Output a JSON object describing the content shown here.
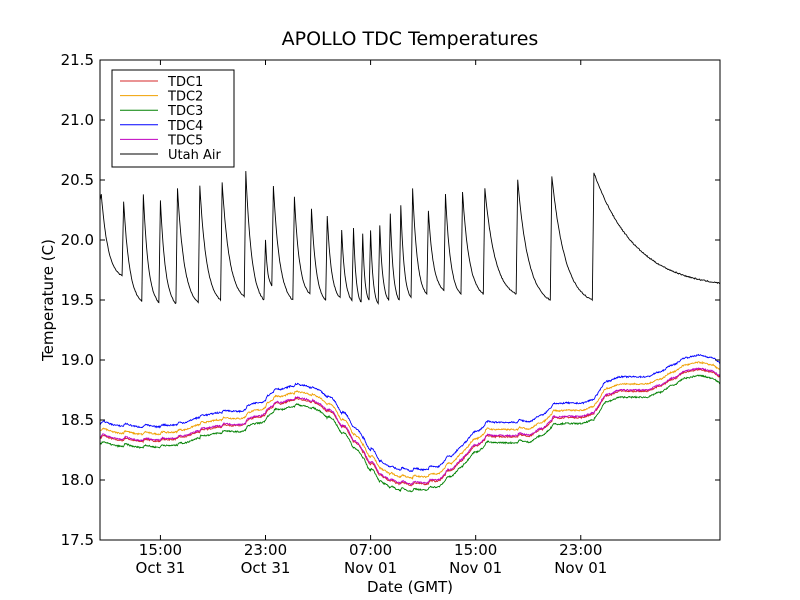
{
  "chart_data": {
    "type": "line",
    "title": "APOLLO TDC Temperatures",
    "xlabel": "Date (GMT)",
    "ylabel": "Temperature (C)",
    "xlim_hours": [
      -4.6,
      42.6
    ],
    "ylim": [
      17.5,
      21.5
    ],
    "y_ticks": [
      "17.5",
      "18.0",
      "18.5",
      "19.0",
      "19.5",
      "20.0",
      "20.5",
      "21.0",
      "21.5"
    ],
    "x_ticks": [
      {
        "hour": 0,
        "time": "15:00",
        "date": "Oct 31"
      },
      {
        "hour": 8,
        "time": "23:00",
        "date": "Oct 31"
      },
      {
        "hour": 16,
        "time": "07:00",
        "date": "Nov 01"
      },
      {
        "hour": 24,
        "time": "15:00",
        "date": "Nov 01"
      },
      {
        "hour": 32,
        "time": "23:00",
        "date": "Nov 01"
      }
    ],
    "legend_position": "upper-left",
    "series": [
      {
        "name": "TDC1",
        "color": "#d62728",
        "offset": 0.0
      },
      {
        "name": "TDC2",
        "color": "#f0a000",
        "offset": 0.06
      },
      {
        "name": "TDC3",
        "color": "#008000",
        "offset": -0.05
      },
      {
        "name": "TDC4",
        "color": "#0000ff",
        "offset": 0.12
      },
      {
        "name": "TDC5",
        "color": "#bf00bf",
        "offset": 0.01
      },
      {
        "name": "Utah Air",
        "color": "#000000",
        "offset": 0
      }
    ],
    "tdc_baseline": {
      "hours": [
        -4.6,
        -3,
        -1.5,
        0,
        1.5,
        3,
        4.5,
        6,
        7.5,
        9,
        10,
        11,
        12,
        13,
        14,
        15,
        16,
        17,
        18,
        19,
        20,
        21,
        22,
        23,
        24,
        25,
        26,
        27,
        28,
        29,
        30,
        31,
        32,
        33,
        34,
        35,
        36,
        37,
        38,
        39,
        40,
        41,
        42,
        42.6
      ],
      "values": [
        18.35,
        18.33,
        18.32,
        18.32,
        18.34,
        18.4,
        18.44,
        18.45,
        18.52,
        18.62,
        18.66,
        18.66,
        18.62,
        18.55,
        18.42,
        18.28,
        18.12,
        18.0,
        17.96,
        17.95,
        17.96,
        17.98,
        18.06,
        18.16,
        18.28,
        18.35,
        18.36,
        18.36,
        18.36,
        18.42,
        18.5,
        18.52,
        18.52,
        18.55,
        18.7,
        18.74,
        18.74,
        18.74,
        18.78,
        18.84,
        18.9,
        18.92,
        18.9,
        18.86
      ]
    },
    "utah_air_peaks": [
      {
        "hour": -4.5,
        "peak": 20.38,
        "min": 19.7
      },
      {
        "hour": -2.8,
        "peak": 20.32,
        "min": 19.49
      },
      {
        "hour": -1.3,
        "peak": 20.38,
        "min": 19.48
      },
      {
        "hour": 0.0,
        "peak": 20.33,
        "min": 19.47
      },
      {
        "hour": 1.3,
        "peak": 20.43,
        "min": 19.48
      },
      {
        "hour": 3.0,
        "peak": 20.45,
        "min": 19.5
      },
      {
        "hour": 4.7,
        "peak": 20.48,
        "min": 19.53
      },
      {
        "hour": 6.5,
        "peak": 20.57,
        "min": 19.5
      },
      {
        "hour": 8.0,
        "peak": 20.0,
        "min": 19.62
      },
      {
        "hour": 8.6,
        "peak": 20.45,
        "min": 19.5
      },
      {
        "hour": 10.2,
        "peak": 20.36,
        "min": 19.55
      },
      {
        "hour": 11.5,
        "peak": 20.26,
        "min": 19.5
      },
      {
        "hour": 12.7,
        "peak": 20.2,
        "min": 19.52
      },
      {
        "hour": 13.8,
        "peak": 20.08,
        "min": 19.5
      },
      {
        "hour": 14.7,
        "peak": 20.1,
        "min": 19.48
      },
      {
        "hour": 15.4,
        "peak": 20.05,
        "min": 19.5
      },
      {
        "hour": 16.0,
        "peak": 20.08,
        "min": 19.47
      },
      {
        "hour": 16.7,
        "peak": 20.12,
        "min": 19.5
      },
      {
        "hour": 17.5,
        "peak": 20.22,
        "min": 19.5
      },
      {
        "hour": 18.3,
        "peak": 20.29,
        "min": 19.52
      },
      {
        "hour": 19.2,
        "peak": 20.43,
        "min": 19.55
      },
      {
        "hour": 20.4,
        "peak": 20.24,
        "min": 19.58
      },
      {
        "hour": 21.7,
        "peak": 20.38,
        "min": 19.55
      },
      {
        "hour": 23.0,
        "peak": 20.4,
        "min": 19.55
      },
      {
        "hour": 24.7,
        "peak": 20.43,
        "min": 19.55
      },
      {
        "hour": 27.2,
        "peak": 20.5,
        "min": 19.5
      },
      {
        "hour": 29.8,
        "peak": 20.53,
        "min": 19.5
      },
      {
        "hour": 33.0,
        "peak": 20.56,
        "min": 19.64
      }
    ]
  }
}
